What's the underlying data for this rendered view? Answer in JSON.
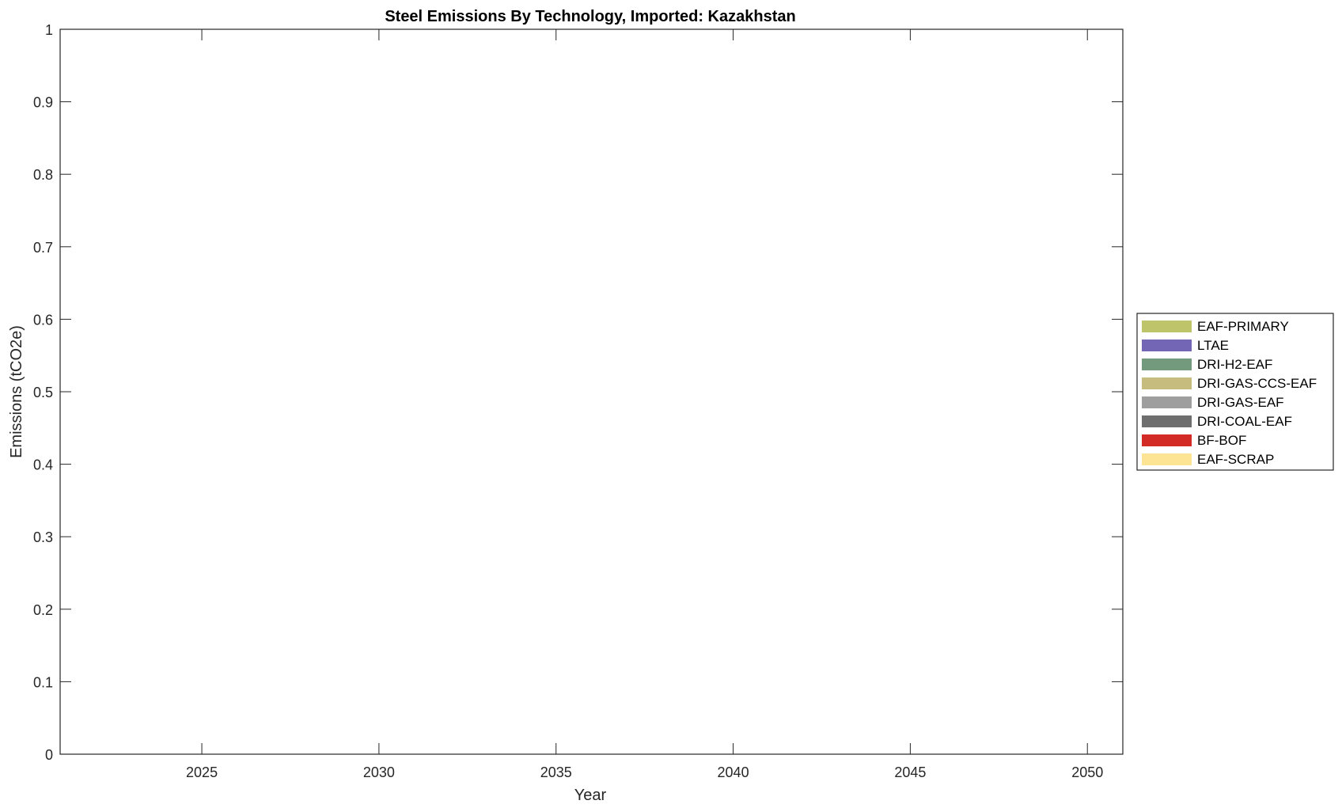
{
  "chart_data": {
    "type": "area",
    "title": "Steel Emissions By Technology, Imported: Kazakhstan",
    "xlabel": "Year",
    "ylabel": "Emissions (tCO2e)",
    "xlim": [
      2021,
      2051
    ],
    "ylim": [
      0,
      1
    ],
    "xticks": [
      2025,
      2030,
      2035,
      2040,
      2045,
      2050
    ],
    "yticks": [
      0,
      0.1,
      0.2,
      0.3,
      0.4,
      0.5,
      0.6,
      0.7,
      0.8,
      0.9,
      1
    ],
    "ytick_labels": [
      "0",
      "0.1",
      "0.2",
      "0.3",
      "0.4",
      "0.5",
      "0.6",
      "0.7",
      "0.8",
      "0.9",
      "1"
    ],
    "grid": false,
    "legend_placement": "right",
    "series": [
      {
        "name": "EAF-PRIMARY",
        "color": "#bdc46a",
        "values": []
      },
      {
        "name": "LTAE",
        "color": "#7266b5",
        "values": []
      },
      {
        "name": "DRI-H2-EAF",
        "color": "#739a7d",
        "values": []
      },
      {
        "name": "DRI-GAS-CCS-EAF",
        "color": "#c5bc7d",
        "values": []
      },
      {
        "name": "DRI-GAS-EAF",
        "color": "#9e9e9e",
        "values": []
      },
      {
        "name": "DRI-COAL-EAF",
        "color": "#6e6e6e",
        "values": []
      },
      {
        "name": "BF-BOF",
        "color": "#d22b26",
        "values": []
      },
      {
        "name": "EAF-SCRAP",
        "color": "#fde494",
        "values": []
      }
    ]
  }
}
